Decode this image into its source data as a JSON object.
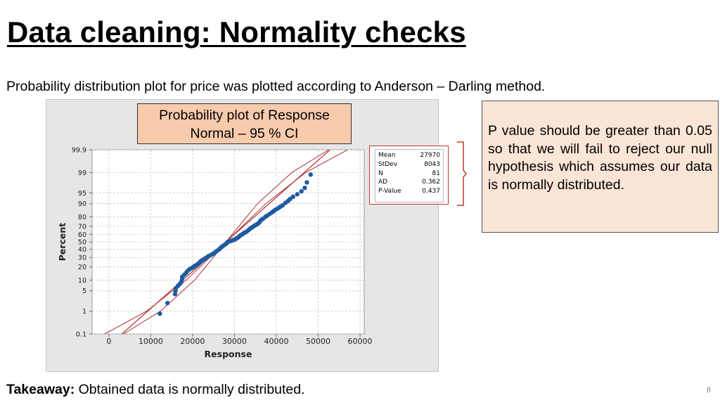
{
  "slide": {
    "title": "Data cleaning: Normality checks",
    "subtitle": "Probability distribution plot for price was plotted according to Anderson – Darling method.",
    "caption_line1": "Probability plot of Response",
    "caption_line2": "Normal – 95 % CI",
    "note": "P value should be greater than 0.05 so that we will fail to reject our null hypothesis which assumes our data is normally distributed.",
    "takeaway_label": "Takeaway:",
    "takeaway_text": " Obtained data is normally distributed.",
    "page_number": "8"
  },
  "stats": [
    {
      "label": "Mean",
      "value": "27970"
    },
    {
      "label": "StDev",
      "value": "8043"
    },
    {
      "label": "N",
      "value": "81"
    },
    {
      "label": "AD",
      "value": "0.362"
    },
    {
      "label": "P-Value",
      "value": "0.437"
    }
  ],
  "colors": {
    "points": "#1f5aa0",
    "ci_lines": "#b03030",
    "grid": "#c8c8c8",
    "caption_fill": "#f8cbad",
    "note_fill": "#fbe5d6",
    "stats_border": "#c0392b"
  },
  "chart_data": {
    "type": "scatter",
    "xlabel": "Response",
    "ylabel": "Percent",
    "x_ticks": [
      0,
      10000,
      20000,
      30000,
      40000,
      50000,
      60000
    ],
    "x_tick_labels": [
      "0",
      "10000",
      "20000",
      "30000",
      "40000",
      "50000",
      "60000"
    ],
    "xlim": [
      -4000,
      61000
    ],
    "y_scale": "normal-probability",
    "y_ticks": [
      0.1,
      1,
      5,
      10,
      20,
      30,
      40,
      50,
      60,
      70,
      80,
      90,
      95,
      99,
      99.9
    ],
    "y_tick_labels": [
      "0.1",
      "1",
      "5",
      "10",
      "20",
      "30",
      "40",
      "50",
      "60",
      "70",
      "80",
      "90",
      "95",
      "99",
      "99.9"
    ],
    "ylim": [
      0.1,
      99.9
    ],
    "grid": true,
    "fit_line": {
      "mean": 27970,
      "stdev": 8043
    },
    "ci_upper": [
      [
        -1000,
        0.1
      ],
      [
        9000,
        1
      ],
      [
        18500,
        10
      ],
      [
        28000,
        50
      ],
      [
        37500,
        90
      ],
      [
        47000,
        99
      ],
      [
        57000,
        99.9
      ]
    ],
    "ci_lower": [
      [
        3500,
        0.1
      ],
      [
        12300,
        1
      ],
      [
        20500,
        10
      ],
      [
        28000,
        50
      ],
      [
        35500,
        90
      ],
      [
        43700,
        99
      ],
      [
        52500,
        99.9
      ]
    ],
    "points": [
      [
        12200,
        0.8
      ],
      [
        14000,
        2.0
      ],
      [
        15800,
        4.0
      ],
      [
        15900,
        5.0
      ],
      [
        16000,
        6.0
      ],
      [
        16500,
        7.0
      ],
      [
        17000,
        8.0
      ],
      [
        17300,
        9.0
      ],
      [
        17500,
        10.5
      ],
      [
        17500,
        12.0
      ],
      [
        18000,
        13.5
      ],
      [
        18500,
        15.0
      ],
      [
        18800,
        16.5
      ],
      [
        19300,
        18.0
      ],
      [
        19800,
        19.0
      ],
      [
        20200,
        20.0
      ],
      [
        20500,
        21.0
      ],
      [
        21000,
        22.0
      ],
      [
        21300,
        23.0
      ],
      [
        21700,
        24.5
      ],
      [
        22000,
        26.0
      ],
      [
        22400,
        27.0
      ],
      [
        22700,
        28.0
      ],
      [
        23000,
        29.0
      ],
      [
        23500,
        30.5
      ],
      [
        23800,
        31.5
      ],
      [
        24200,
        32.5
      ],
      [
        24700,
        34.0
      ],
      [
        25100,
        35.0
      ],
      [
        25400,
        36.5
      ],
      [
        25800,
        38.0
      ],
      [
        26200,
        39.5
      ],
      [
        26500,
        41.0
      ],
      [
        26800,
        42.5
      ],
      [
        27100,
        44.0
      ],
      [
        27500,
        45.5
      ],
      [
        27900,
        47.0
      ],
      [
        28200,
        48.5
      ],
      [
        28400,
        50.0
      ],
      [
        29000,
        51.0
      ],
      [
        29500,
        52.0
      ],
      [
        30000,
        53.0
      ],
      [
        30300,
        54.0
      ],
      [
        30600,
        55.0
      ],
      [
        30900,
        56.0
      ],
      [
        31200,
        57.5
      ],
      [
        31500,
        59.0
      ],
      [
        31900,
        60.0
      ],
      [
        32200,
        61.5
      ],
      [
        32600,
        62.5
      ],
      [
        33000,
        64.0
      ],
      [
        33400,
        65.5
      ],
      [
        33700,
        67.0
      ],
      [
        34000,
        68.0
      ],
      [
        34300,
        69.0
      ],
      [
        34600,
        70.0
      ],
      [
        34900,
        71.0
      ],
      [
        35300,
        72.0
      ],
      [
        35600,
        73.0
      ],
      [
        35900,
        74.0
      ],
      [
        36100,
        75.5
      ],
      [
        36400,
        77.0
      ],
      [
        36800,
        78.0
      ],
      [
        37400,
        80.0
      ],
      [
        37800,
        81.0
      ],
      [
        38400,
        82.5
      ],
      [
        39000,
        84.0
      ],
      [
        39400,
        85.0
      ],
      [
        39800,
        86.0
      ],
      [
        40400,
        87.0
      ],
      [
        40900,
        88.0
      ],
      [
        41500,
        89.0
      ],
      [
        42200,
        90.5
      ],
      [
        42800,
        91.5
      ],
      [
        43300,
        92.5
      ],
      [
        44000,
        93.5
      ],
      [
        45000,
        94.5
      ],
      [
        46000,
        95.5
      ],
      [
        46800,
        96.5
      ],
      [
        47300,
        97.7
      ],
      [
        48200,
        98.8
      ]
    ]
  }
}
